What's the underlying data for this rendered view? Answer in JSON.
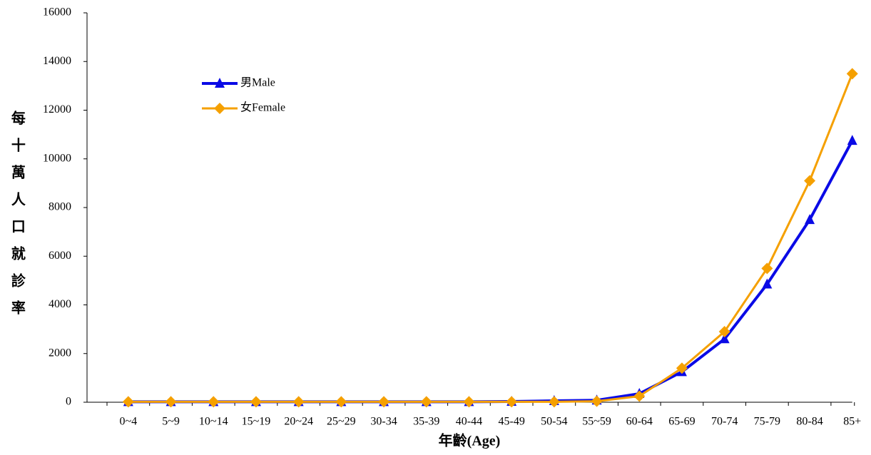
{
  "chart_data": {
    "type": "line",
    "y_label": "每十萬人口就診率",
    "x_label": "年齡(Age)",
    "categories": [
      "0~4",
      "5~9",
      "10~14",
      "15~19",
      "20~24",
      "25~29",
      "30-34",
      "35-39",
      "40-44",
      "45-49",
      "50-54",
      "55~59",
      "60-64",
      "65-69",
      "70-74",
      "75-79",
      "80-84",
      "85+"
    ],
    "series": [
      {
        "name": "男Male",
        "color": "#0a0ae6",
        "marker": "triangle",
        "values": [
          20,
          20,
          20,
          20,
          20,
          20,
          20,
          20,
          20,
          30,
          60,
          80,
          350,
          1250,
          2600,
          4850,
          7500,
          10750
        ]
      },
      {
        "name": "女Female",
        "color": "#f5a000",
        "marker": "diamond",
        "values": [
          20,
          20,
          20,
          20,
          20,
          20,
          20,
          20,
          20,
          20,
          20,
          40,
          250,
          1400,
          2900,
          5500,
          9100,
          13500
        ]
      }
    ],
    "ylim": [
      0,
      16000
    ],
    "yticks": [
      0,
      2000,
      4000,
      6000,
      8000,
      10000,
      12000,
      14000,
      16000
    ],
    "grid": false
  }
}
